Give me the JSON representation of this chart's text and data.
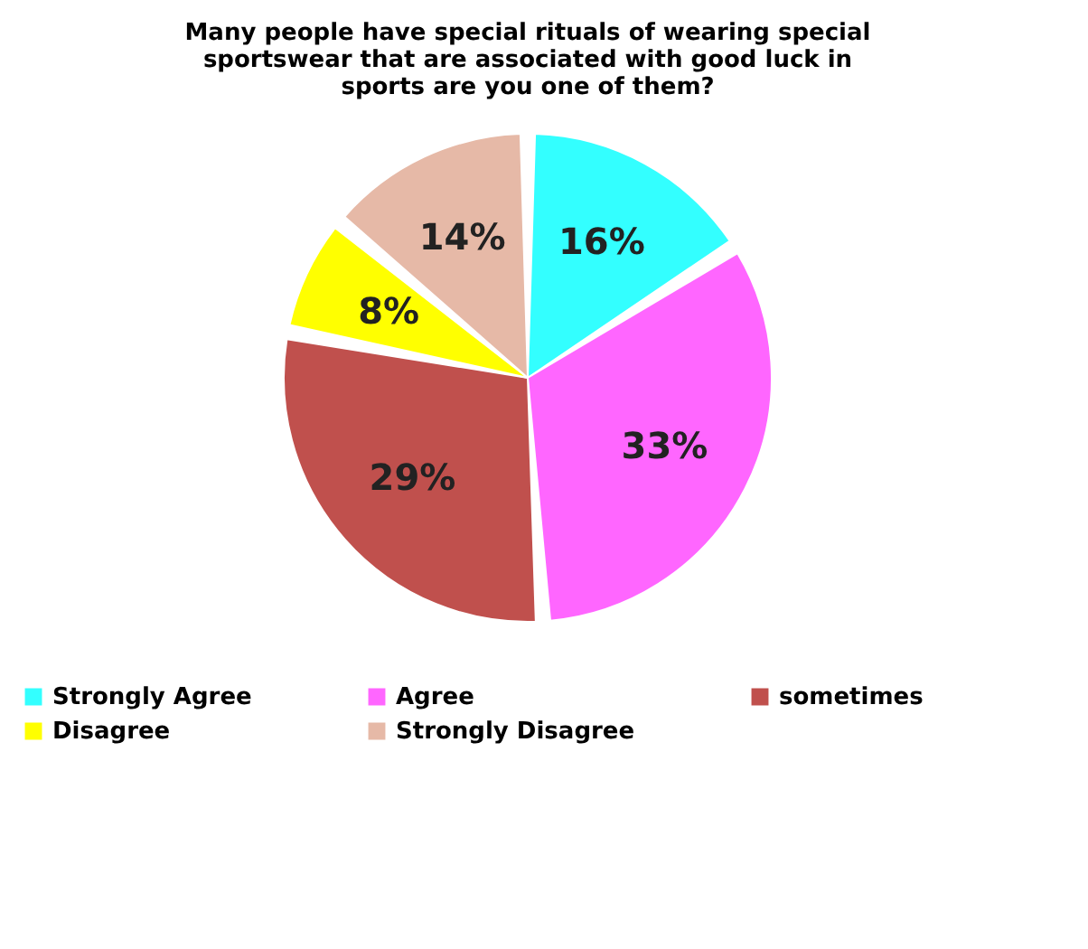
{
  "chart_data": {
    "type": "pie",
    "title": "Many people have special rituals of wearing special sportswear that are associated with good luck in sports are you one of them?",
    "categories": [
      "Strongly Agree",
      "Agree",
      "sometimes",
      "Disagree",
      "Strongly Disagree"
    ],
    "values": [
      16,
      33,
      29,
      8,
      14
    ],
    "colors": [
      "#33ffff",
      "#ff66ff",
      "#c0504d",
      "#ffff00",
      "#e6b9a7"
    ],
    "value_labels": [
      "16%",
      "33%",
      "29%",
      "8%",
      "14%"
    ],
    "legend": "bottom"
  }
}
